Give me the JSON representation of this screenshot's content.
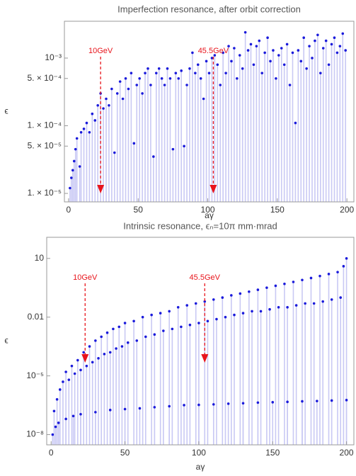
{
  "chart_data": [
    {
      "type": "stem",
      "title": "Imperfection resonance, after orbit correction",
      "x_label": "aγ",
      "y_label": "ϵ",
      "log_y": true,
      "xlim": [
        -3,
        205
      ],
      "ylim": [
        7.5e-06,
        0.0035
      ],
      "xticks": [
        0,
        50,
        100,
        150,
        200
      ],
      "yticks": [
        {
          "value": 1e-05,
          "label": "1. × 10⁻⁵"
        },
        {
          "value": 5e-05,
          "label": "5. × 10⁻⁵"
        },
        {
          "value": 0.0001,
          "label": "1. × 10⁻⁴"
        },
        {
          "value": 0.0005,
          "label": "5. × 10⁻⁴"
        },
        {
          "value": 0.001,
          "label": "10⁻³"
        }
      ],
      "annotation_color": "#e8141b",
      "annotations": [
        {
          "text": "10GeV",
          "x": 23
        },
        {
          "text": "45.5GeV",
          "x": 104
        }
      ],
      "series": [
        {
          "color": "#1a1adb",
          "stem_color": "#c9c9f4",
          "x": [
            1,
            2,
            3,
            4,
            5,
            6,
            8,
            9,
            11,
            13,
            15,
            17,
            19,
            21,
            23,
            25,
            27,
            29,
            31,
            33,
            35,
            37,
            39,
            41,
            43,
            45,
            47,
            49,
            51,
            53,
            55,
            57,
            59,
            61,
            63,
            65,
            67,
            69,
            71,
            73,
            75,
            77,
            79,
            81,
            83,
            85,
            87,
            89,
            91,
            93,
            95,
            97,
            99,
            101,
            103,
            105,
            107,
            109,
            111,
            113,
            115,
            117,
            119,
            121,
            123,
            125,
            127,
            129,
            131,
            133,
            135,
            137,
            139,
            141,
            143,
            145,
            147,
            149,
            151,
            153,
            155,
            157,
            159,
            161,
            163,
            165,
            167,
            169,
            171,
            173,
            175,
            177,
            179,
            181,
            183,
            185,
            187,
            189,
            191,
            193,
            195,
            197,
            199
          ],
          "values": [
            1.2e-05,
            1.7e-05,
            2.2e-05,
            3e-05,
            4.5e-05,
            6.5e-05,
            2.5e-05,
            8e-05,
            9e-05,
            0.00011,
            8e-05,
            0.00015,
            0.00012,
            0.0002,
            0.0003,
            0.00018,
            0.00025,
            0.0002,
            0.00035,
            4e-05,
            0.0003,
            0.00045,
            0.00025,
            0.0005,
            0.00035,
            0.0006,
            5.5e-05,
            0.0004,
            0.0005,
            0.0003,
            0.0006,
            0.0007,
            0.0004,
            3.5e-05,
            0.0006,
            0.0007,
            0.0005,
            0.0004,
            0.0007,
            0.0005,
            4.5e-05,
            0.0006,
            0.0005,
            0.00065,
            5e-05,
            0.0004,
            0.0007,
            0.0012,
            0.0006,
            0.0008,
            0.0005,
            0.00025,
            0.0009,
            0.0006,
            0.001,
            0.0011,
            0.0008,
            0.0004,
            0.0012,
            0.0006,
            0.0015,
            0.0009,
            0.0014,
            0.0005,
            0.0011,
            0.0007,
            0.0024,
            0.0013,
            0.0016,
            0.0008,
            0.0015,
            0.0018,
            0.0006,
            0.0012,
            0.002,
            0.0009,
            0.0013,
            0.0005,
            0.0011,
            0.0014,
            0.0008,
            0.0016,
            0.0004,
            0.0012,
            0.00011,
            0.0013,
            0.0009,
            0.002,
            0.0007,
            0.0015,
            0.001,
            0.0018,
            0.0022,
            0.0006,
            0.0014,
            0.0018,
            0.0008,
            0.0016,
            0.002,
            0.0012,
            0.0015,
            0.0023,
            0.0013
          ]
        }
      ]
    },
    {
      "type": "stem",
      "title": "Intrinsic resonance, ϵₙ=10π mm·mrad",
      "x_label": "aγ",
      "y_label": "ϵ",
      "log_y": true,
      "xlim": [
        -3,
        205
      ],
      "ylim": [
        3e-09,
        120
      ],
      "xticks": [
        0,
        50,
        100,
        150,
        200
      ],
      "yticks": [
        {
          "value": 1e-08,
          "label": "10⁻⁸"
        },
        {
          "value": 1e-05,
          "label": "10⁻⁵"
        },
        0.01,
        10
      ],
      "annotation_color": "#e8141b",
      "annotations": [
        {
          "text": "10GeV",
          "x": 23
        },
        {
          "text": "45.5GeV",
          "x": 104
        }
      ],
      "series": [
        {
          "color": "#1a1adb",
          "stem_color": "#c9c9f4",
          "x": [
            2,
            4,
            6,
            8,
            10,
            12,
            14,
            16,
            18,
            20,
            22,
            24,
            26,
            28,
            30,
            32,
            34,
            36,
            38,
            40,
            42,
            44,
            46,
            48,
            50,
            52,
            56,
            58,
            62,
            64,
            68,
            70,
            74,
            76,
            80,
            82,
            86,
            88,
            92,
            94,
            98,
            100,
            104,
            106,
            110,
            112,
            116,
            118,
            122,
            124,
            128,
            130,
            134,
            136,
            140,
            142,
            146,
            148,
            152,
            154,
            158,
            160,
            164,
            166,
            170,
            172,
            176,
            178,
            182,
            184,
            188,
            190,
            194,
            196,
            198,
            200
          ],
          "values": [
            1.6e-07,
            6.3e-07,
            2e-06,
            5e-06,
            1.6e-05,
            6.3e-06,
            3.2e-05,
            1.3e-05,
            6.3e-05,
            2e-05,
            0.00016,
            3.2e-05,
            0.00032,
            5e-05,
            0.00063,
            7.9e-05,
            0.001,
            0.00013,
            0.0016,
            0.00016,
            0.0025,
            0.00025,
            0.0032,
            0.00032,
            0.005,
            0.0005,
            0.0063,
            0.00063,
            0.01,
            0.001,
            0.013,
            0.0013,
            0.016,
            0.002,
            0.02,
            0.0025,
            0.032,
            0.0032,
            0.04,
            0.004,
            0.05,
            0.005,
            0.063,
            0.0063,
            0.079,
            0.0079,
            0.1,
            0.01,
            0.13,
            0.013,
            0.16,
            0.016,
            0.2,
            0.02,
            0.25,
            0.02,
            0.32,
            0.025,
            0.4,
            0.032,
            0.5,
            0.032,
            0.63,
            0.04,
            0.79,
            0.05,
            1,
            0.05,
            1.26,
            0.063,
            1.6,
            0.079,
            2,
            0.1,
            4,
            10
          ]
        },
        {
          "color": "#1a1adb",
          "stem_color": "#c9c9f4",
          "x": [
            1,
            3,
            5,
            10,
            15,
            20,
            30,
            40,
            50,
            60,
            70,
            80,
            90,
            100,
            110,
            120,
            130,
            140,
            150,
            160,
            170,
            180,
            190,
            200
          ],
          "values": [
            1e-08,
            2.5e-08,
            4e-08,
            6.3e-08,
            8.9e-08,
            1.1e-07,
            1.4e-07,
            1.8e-07,
            2e-07,
            2.2e-07,
            2.5e-07,
            2.8e-07,
            3.2e-07,
            3.3e-07,
            3.5e-07,
            3.8e-07,
            4e-07,
            4.3e-07,
            4.5e-07,
            4.7e-07,
            5e-07,
            5.2e-07,
            5.5e-07,
            5.8e-07
          ]
        }
      ]
    }
  ]
}
